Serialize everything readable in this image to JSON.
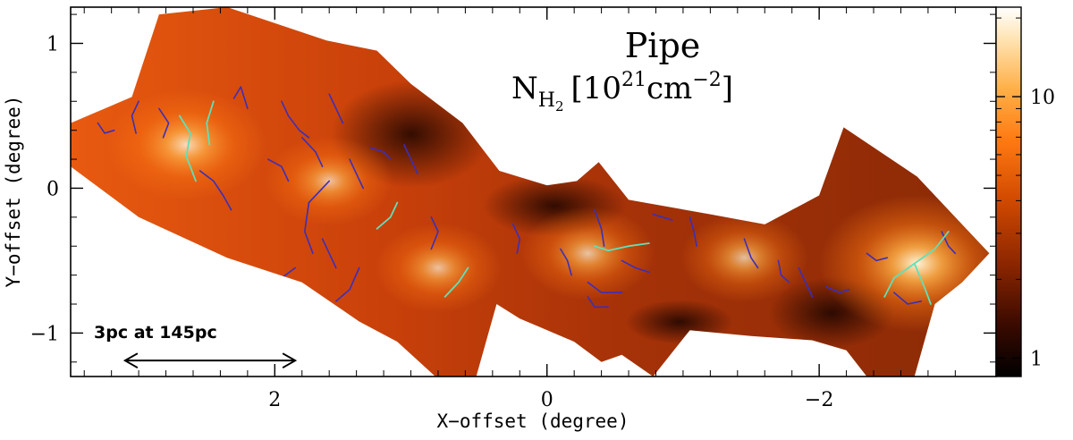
{
  "chart_data": {
    "type": "heatmap",
    "title": "Pipe",
    "colorbar_label": {
      "symbol": "N",
      "symbol_sub": "H",
      "symbol_subsub": "2",
      "unit_open": "[10",
      "unit_exp": "21",
      "unit_mid": "cm",
      "unit_exp2": "−2",
      "unit_close": "]"
    },
    "xlabel": "X−offset (degree)",
    "ylabel": "Y−offset (degree)",
    "xlim": [
      3.5,
      -3.3
    ],
    "ylim": [
      -1.3,
      1.25
    ],
    "x_ticks": [
      2,
      0,
      -2
    ],
    "x_tick_labels": [
      "2",
      "0",
      "−2"
    ],
    "y_ticks": [
      1,
      0,
      -1
    ],
    "y_tick_labels": [
      "1",
      "0",
      "−1"
    ],
    "colorbar": {
      "scale": "log",
      "range": [
        0.85,
        22
      ],
      "ticks": [
        1,
        10
      ],
      "tick_labels": [
        "1",
        "10"
      ],
      "colormap": [
        "#000000",
        "#3a0a00",
        "#8a2500",
        "#d24a00",
        "#ff7a12",
        "#ffb048",
        "#ffe6b8",
        "#ffffff"
      ]
    },
    "scale_bar": {
      "label": "3pc at 145pc",
      "from_x": 3.1,
      "to_x": 1.85,
      "y": -1.19
    },
    "map_footprint": [
      [
        3.5,
        0.45
      ],
      [
        3.05,
        0.63
      ],
      [
        2.85,
        1.2
      ],
      [
        2.35,
        1.25
      ],
      [
        1.62,
        1.02
      ],
      [
        1.25,
        0.95
      ],
      [
        1.0,
        0.72
      ],
      [
        0.62,
        0.45
      ],
      [
        0.35,
        0.12
      ],
      [
        0.0,
        0.02
      ],
      [
        -0.22,
        0.05
      ],
      [
        -0.38,
        0.18
      ],
      [
        -0.6,
        -0.08
      ],
      [
        -1.2,
        -0.18
      ],
      [
        -1.6,
        -0.25
      ],
      [
        -2.0,
        -0.05
      ],
      [
        -2.18,
        0.42
      ],
      [
        -2.72,
        0.08
      ],
      [
        -3.05,
        -0.25
      ],
      [
        -3.25,
        -0.45
      ],
      [
        -3.05,
        -0.65
      ],
      [
        -2.85,
        -0.8
      ],
      [
        -2.7,
        -1.3
      ],
      [
        -2.35,
        -1.3
      ],
      [
        -2.2,
        -1.12
      ],
      [
        -1.95,
        -1.05
      ],
      [
        -1.5,
        -1.02
      ],
      [
        -1.05,
        -0.98
      ],
      [
        -0.78,
        -1.3
      ],
      [
        -0.55,
        -1.15
      ],
      [
        -0.4,
        -1.2
      ],
      [
        -0.2,
        -1.06
      ],
      [
        0.05,
        -0.96
      ],
      [
        0.2,
        -0.9
      ],
      [
        0.37,
        -0.8
      ],
      [
        0.52,
        -1.3
      ],
      [
        0.82,
        -1.3
      ],
      [
        1.1,
        -1.06
      ],
      [
        1.38,
        -0.92
      ],
      [
        1.8,
        -0.65
      ],
      [
        2.35,
        -0.48
      ],
      [
        3.0,
        -0.2
      ],
      [
        3.5,
        0.15
      ]
    ],
    "dense_clumps": [
      {
        "x": 2.65,
        "y": 0.3,
        "brightness": 0.7
      },
      {
        "x": 1.6,
        "y": 0.05,
        "brightness": 0.45
      },
      {
        "x": 0.8,
        "y": -0.55,
        "brightness": 0.45
      },
      {
        "x": -0.3,
        "y": -0.45,
        "brightness": 0.5
      },
      {
        "x": -1.45,
        "y": -0.48,
        "brightness": 0.45
      },
      {
        "x": -2.72,
        "y": -0.52,
        "brightness": 1.0
      }
    ],
    "filaments_highlight": [
      [
        [
          2.7,
          0.5
        ],
        [
          2.62,
          0.38
        ],
        [
          2.65,
          0.22
        ],
        [
          2.58,
          0.05
        ]
      ],
      [
        [
          2.45,
          0.6
        ],
        [
          2.5,
          0.45
        ],
        [
          2.48,
          0.3
        ]
      ],
      [
        [
          1.1,
          -0.1
        ],
        [
          1.15,
          -0.2
        ],
        [
          1.25,
          -0.28
        ]
      ],
      [
        [
          0.58,
          -0.55
        ],
        [
          0.65,
          -0.65
        ],
        [
          0.75,
          -0.75
        ]
      ],
      [
        [
          -0.35,
          -0.4
        ],
        [
          -0.45,
          -0.43
        ],
        [
          -0.6,
          -0.4
        ],
        [
          -0.75,
          -0.38
        ]
      ],
      [
        [
          -2.7,
          -0.52
        ],
        [
          -2.85,
          -0.42
        ],
        [
          -2.95,
          -0.3
        ]
      ],
      [
        [
          -2.7,
          -0.52
        ],
        [
          -2.55,
          -0.62
        ],
        [
          -2.48,
          -0.75
        ]
      ],
      [
        [
          -2.7,
          -0.52
        ],
        [
          -2.78,
          -0.7
        ],
        [
          -2.82,
          -0.8
        ]
      ]
    ],
    "filaments_skeleton": [
      [
        [
          3.3,
          0.45
        ],
        [
          3.25,
          0.38
        ],
        [
          3.18,
          0.4
        ]
      ],
      [
        [
          3.0,
          0.6
        ],
        [
          3.05,
          0.5
        ],
        [
          3.02,
          0.38
        ]
      ],
      [
        [
          2.85,
          0.55
        ],
        [
          2.78,
          0.45
        ],
        [
          2.82,
          0.35
        ]
      ],
      [
        [
          2.55,
          0.12
        ],
        [
          2.45,
          0.05
        ],
        [
          2.38,
          -0.05
        ],
        [
          2.32,
          -0.15
        ]
      ],
      [
        [
          2.3,
          0.62
        ],
        [
          2.25,
          0.7
        ],
        [
          2.2,
          0.55
        ]
      ],
      [
        [
          2.05,
          0.2
        ],
        [
          1.95,
          0.15
        ],
        [
          1.9,
          0.05
        ]
      ],
      [
        [
          1.95,
          0.6
        ],
        [
          1.9,
          0.5
        ],
        [
          1.82,
          0.4
        ],
        [
          1.75,
          0.35
        ]
      ],
      [
        [
          1.8,
          0.35
        ],
        [
          1.7,
          0.25
        ],
        [
          1.65,
          0.15
        ]
      ],
      [
        [
          1.6,
          0.05
        ],
        [
          1.75,
          -0.1
        ],
        [
          1.78,
          -0.3
        ],
        [
          1.72,
          -0.45
        ]
      ],
      [
        [
          1.6,
          0.65
        ],
        [
          1.55,
          0.55
        ],
        [
          1.5,
          0.45
        ]
      ],
      [
        [
          1.45,
          0.2
        ],
        [
          1.4,
          0.1
        ],
        [
          1.35,
          0.0
        ]
      ],
      [
        [
          1.38,
          -0.55
        ],
        [
          1.45,
          -0.7
        ],
        [
          1.55,
          -0.78
        ]
      ],
      [
        [
          1.85,
          -0.55
        ],
        [
          1.95,
          -0.62
        ],
        [
          2.05,
          -0.6
        ]
      ],
      [
        [
          1.55,
          -0.55
        ],
        [
          1.6,
          -0.45
        ],
        [
          1.65,
          -0.35
        ]
      ],
      [
        [
          1.05,
          0.3
        ],
        [
          1.0,
          0.2
        ],
        [
          0.95,
          0.1
        ]
      ],
      [
        [
          1.3,
          0.28
        ],
        [
          1.2,
          0.25
        ],
        [
          1.15,
          0.2
        ]
      ],
      [
        [
          0.85,
          -0.2
        ],
        [
          0.8,
          -0.3
        ],
        [
          0.85,
          -0.42
        ]
      ],
      [
        [
          0.25,
          -0.25
        ],
        [
          0.2,
          -0.35
        ],
        [
          0.22,
          -0.45
        ]
      ],
      [
        [
          -0.35,
          -0.15
        ],
        [
          -0.4,
          -0.28
        ],
        [
          -0.42,
          -0.4
        ]
      ],
      [
        [
          -0.1,
          -0.42
        ],
        [
          -0.15,
          -0.5
        ],
        [
          -0.18,
          -0.6
        ]
      ],
      [
        [
          -0.3,
          -0.65
        ],
        [
          -0.4,
          -0.72
        ],
        [
          -0.55,
          -0.72
        ]
      ],
      [
        [
          -0.55,
          -0.5
        ],
        [
          -0.65,
          -0.55
        ],
        [
          -0.75,
          -0.58
        ]
      ],
      [
        [
          -0.78,
          -0.18
        ],
        [
          -0.85,
          -0.2
        ],
        [
          -0.92,
          -0.22
        ]
      ],
      [
        [
          -1.05,
          -0.2
        ],
        [
          -1.08,
          -0.3
        ],
        [
          -1.1,
          -0.4
        ]
      ],
      [
        [
          -1.45,
          -0.35
        ],
        [
          -1.5,
          -0.48
        ],
        [
          -1.55,
          -0.55
        ]
      ],
      [
        [
          -1.7,
          -0.5
        ],
        [
          -1.72,
          -0.6
        ],
        [
          -1.78,
          -0.65
        ]
      ],
      [
        [
          -1.85,
          -0.55
        ],
        [
          -1.9,
          -0.65
        ],
        [
          -1.95,
          -0.75
        ]
      ],
      [
        [
          -2.05,
          -0.68
        ],
        [
          -2.15,
          -0.72
        ],
        [
          -2.22,
          -0.7
        ]
      ],
      [
        [
          -2.35,
          -0.45
        ],
        [
          -2.42,
          -0.5
        ],
        [
          -2.5,
          -0.48
        ]
      ],
      [
        [
          -2.9,
          -0.3
        ],
        [
          -2.95,
          -0.4
        ],
        [
          -3.0,
          -0.45
        ]
      ],
      [
        [
          -2.55,
          -0.72
        ],
        [
          -2.65,
          -0.8
        ],
        [
          -2.75,
          -0.78
        ]
      ],
      [
        [
          -0.3,
          -0.75
        ],
        [
          -0.35,
          -0.82
        ],
        [
          -0.45,
          -0.82
        ]
      ]
    ]
  }
}
